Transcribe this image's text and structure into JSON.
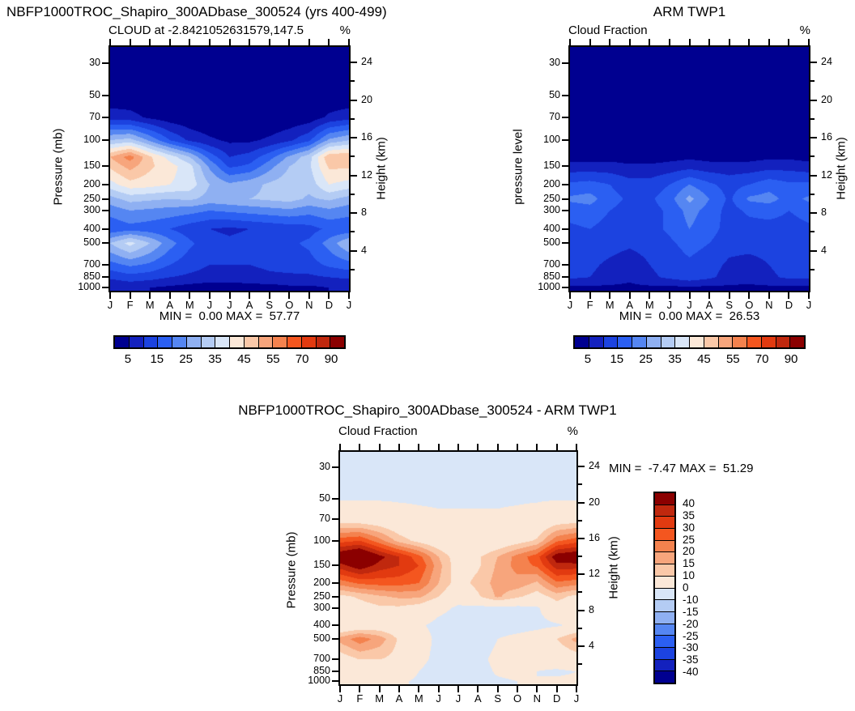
{
  "palette": [
    "#000090",
    "#1321BE",
    "#1C43E0",
    "#2B5FF2",
    "#5586F2",
    "#8FB0F2",
    "#B4CCF4",
    "#D9E6F8",
    "#FBE8D8",
    "#FAC8A8",
    "#F7A57C",
    "#F4824E",
    "#F4561F",
    "#E23A10",
    "#C0280E",
    "#8B0000"
  ],
  "months": [
    "J",
    "F",
    "M",
    "A",
    "M",
    "J",
    "J",
    "A",
    "S",
    "O",
    "N",
    "D",
    "J"
  ],
  "pressure_ticks": [
    30,
    50,
    70,
    100,
    150,
    200,
    250,
    300,
    400,
    500,
    700,
    850,
    1000
  ],
  "height_ticks_major": [
    24,
    20,
    16,
    12,
    8,
    4
  ],
  "height_ticks_minor": [
    22,
    18,
    14,
    10,
    6,
    2
  ],
  "chart_data": [
    {
      "type": "contour",
      "id": "model",
      "title": "NBFP1000TROC_Shapiro_300ADbase_300524 (yrs 400-499)",
      "subtitle": "CLOUD at -2.8421052631579,147.5",
      "unit": "%",
      "ylabel_left": "Pressure (mb)",
      "ylabel_right": "Height (km)",
      "stats": "MIN =  0.00 MAX =  57.77",
      "min": 0.0,
      "max": 57.77,
      "boundaries": [
        5,
        10,
        15,
        20,
        25,
        30,
        35,
        40,
        45,
        50,
        55,
        60,
        70,
        80,
        90
      ],
      "colorbar_labels": [
        "5",
        "15",
        "25",
        "35",
        "45",
        "55",
        "70",
        "90"
      ],
      "grid_levels_mb": [
        25,
        50,
        70,
        100,
        130,
        150,
        200,
        250,
        300,
        400,
        500,
        700,
        850,
        1000
      ],
      "values": [
        [
          0,
          0,
          0,
          0,
          0,
          0,
          0,
          0,
          0,
          0,
          0,
          0,
          0
        ],
        [
          1,
          1,
          0,
          0,
          0,
          0,
          0,
          0,
          0,
          0,
          0,
          1,
          1
        ],
        [
          8,
          7,
          4,
          2,
          1,
          0,
          0,
          0,
          0,
          1,
          2,
          6,
          8
        ],
        [
          30,
          32,
          24,
          15,
          9,
          6,
          4,
          4,
          6,
          9,
          14,
          26,
          30
        ],
        [
          50,
          57.5,
          46,
          38,
          30,
          18,
          10,
          12,
          18,
          26,
          33,
          49,
          50
        ],
        [
          46,
          52,
          46,
          42,
          37,
          24,
          14,
          16,
          23,
          30,
          34,
          46,
          46
        ],
        [
          38,
          43,
          42,
          40,
          38,
          30,
          26,
          28,
          31,
          33,
          32,
          40,
          38
        ],
        [
          28,
          32,
          31,
          30,
          31,
          28,
          29,
          30,
          31,
          32,
          29,
          31,
          28
        ],
        [
          22,
          25,
          24,
          23,
          22,
          20,
          21,
          22,
          23,
          24,
          22,
          24,
          22
        ],
        [
          16,
          18,
          17,
          15,
          12,
          10,
          9,
          10,
          11,
          12,
          13,
          16,
          16
        ],
        [
          30,
          37,
          30,
          22,
          16,
          12,
          11,
          12,
          13,
          14,
          16,
          22,
          30
        ],
        [
          18,
          21,
          19,
          15,
          12,
          10,
          10,
          10,
          11,
          12,
          13,
          16,
          18
        ],
        [
          11,
          13,
          12,
          10,
          9,
          8,
          8,
          8,
          9,
          9,
          9,
          10,
          11
        ],
        [
          5,
          6,
          5,
          4,
          3,
          2,
          2,
          3,
          3,
          4,
          4,
          5,
          5
        ]
      ]
    },
    {
      "type": "contour",
      "id": "obs",
      "title": "ARM TWP1",
      "subtitle": "Cloud Fraction",
      "unit": "%",
      "ylabel_left": "pressure level",
      "ylabel_right": "Height (km)",
      "stats": "MIN =  0.00 MAX =  26.53",
      "min": 0.0,
      "max": 26.53,
      "boundaries": [
        5,
        10,
        15,
        20,
        25,
        30,
        35,
        40,
        45,
        50,
        55,
        60,
        70,
        80,
        90
      ],
      "colorbar_labels": [
        "5",
        "15",
        "25",
        "35",
        "45",
        "55",
        "70",
        "90"
      ],
      "grid_levels_mb": [
        25,
        50,
        70,
        100,
        130,
        150,
        200,
        250,
        300,
        400,
        500,
        700,
        850,
        1000
      ],
      "values": [
        [
          0,
          0,
          0,
          0,
          0,
          0,
          0,
          0,
          0,
          0,
          0,
          0,
          0
        ],
        [
          0,
          0,
          0,
          0,
          0,
          0,
          0,
          0,
          0,
          0,
          0,
          0,
          0
        ],
        [
          0,
          0,
          0,
          0,
          0,
          0,
          0,
          0,
          0,
          0,
          0,
          0,
          0
        ],
        [
          1,
          1,
          1,
          1,
          1,
          1,
          1,
          1,
          1,
          1,
          1,
          1,
          1
        ],
        [
          3,
          3,
          3,
          2,
          2,
          3,
          4,
          3,
          3,
          3,
          4,
          4,
          3
        ],
        [
          7,
          7,
          7,
          6,
          6,
          7,
          8,
          7,
          7,
          7,
          8,
          8,
          7
        ],
        [
          16,
          17,
          15,
          12,
          12,
          15,
          20,
          16,
          13,
          15,
          18,
          16,
          16
        ],
        [
          21,
          22,
          17,
          14,
          14,
          18,
          26.5,
          20,
          14,
          21,
          22,
          18,
          21
        ],
        [
          17,
          18,
          15,
          13,
          13,
          16,
          22,
          18,
          13,
          16,
          17,
          15,
          17
        ],
        [
          14,
          15,
          13,
          12,
          13,
          16,
          20,
          17,
          13,
          13,
          13,
          13,
          14
        ],
        [
          13,
          13,
          12,
          11,
          12,
          14,
          17,
          15,
          12,
          12,
          12,
          12,
          13
        ],
        [
          12,
          11,
          9,
          7,
          10,
          12,
          14,
          12,
          9,
          8,
          10,
          12,
          12
        ],
        [
          11,
          10,
          8,
          6,
          9,
          11,
          13,
          11,
          8,
          7,
          9,
          11,
          11
        ],
        [
          4,
          4,
          4,
          4,
          4,
          4,
          4,
          4,
          4,
          4,
          4,
          4,
          4
        ]
      ]
    },
    {
      "type": "contour",
      "id": "difference",
      "title": "NBFP1000TROC_Shapiro_300ADbase_300524 - ARM TWP1",
      "subtitle": "Cloud Fraction",
      "unit": "%",
      "ylabel_left": "Pressure (mb)",
      "ylabel_right": "Height (km)",
      "stats": "MIN =  -7.47 MAX =  51.29",
      "min": -7.47,
      "max": 51.29,
      "boundaries": [
        -40,
        -35,
        -30,
        -25,
        -20,
        -15,
        -10,
        0,
        10,
        15,
        20,
        25,
        30,
        35,
        40
      ],
      "colorbar_labels": [
        "40",
        "35",
        "30",
        "25",
        "20",
        "15",
        "10",
        "0",
        "-10",
        "-15",
        "-20",
        "-25",
        "-30",
        "-35",
        "-40"
      ],
      "grid_levels_mb": [
        25,
        50,
        70,
        100,
        130,
        150,
        200,
        250,
        300,
        400,
        500,
        700,
        850,
        1000
      ],
      "values": [
        [
          -0.5,
          -0.5,
          -0.5,
          -0.5,
          -0.5,
          -0.5,
          -0.5,
          -0.5,
          -0.5,
          -0.5,
          -0.5,
          -0.5,
          -0.5
        ],
        [
          -0.5,
          -0.5,
          -0.5,
          -0.5,
          -0.5,
          -0.5,
          -0.5,
          -0.5,
          -0.5,
          -0.5,
          -0.5,
          -0.5,
          -0.5
        ],
        [
          6,
          5,
          4,
          2,
          1,
          0.5,
          0.5,
          0.5,
          0.5,
          1,
          2,
          5,
          6
        ],
        [
          28,
          30,
          22,
          13,
          8,
          4,
          2,
          2,
          4,
          7,
          11,
          24,
          28
        ],
        [
          46,
          51,
          42,
          35,
          27,
          15,
          6,
          9,
          15,
          22,
          28,
          44,
          46
        ],
        [
          38,
          44,
          38,
          35,
          30,
          17,
          6,
          9,
          16,
          22,
          26,
          38,
          38
        ],
        [
          22,
          26,
          27,
          27,
          25,
          15,
          7,
          12,
          17,
          18,
          14,
          24,
          22
        ],
        [
          8,
          11,
          14,
          16,
          16,
          10,
          3,
          9,
          16,
          11,
          7,
          12,
          8
        ],
        [
          5,
          7,
          9,
          9,
          7,
          2,
          -1,
          -2,
          -2,
          -2,
          -1,
          7,
          5
        ],
        [
          2,
          4,
          5,
          4,
          1,
          -2,
          -3,
          -3,
          -3,
          -3,
          -2,
          -1,
          2
        ],
        [
          17,
          23,
          18,
          9,
          4,
          -2,
          -7.5,
          -4,
          0,
          2,
          4,
          10,
          17
        ],
        [
          6,
          10,
          10,
          8,
          2,
          -2,
          -4,
          -2,
          2,
          4,
          3,
          4,
          6
        ],
        [
          0,
          3,
          4,
          4,
          0,
          -3,
          -5,
          -3,
          1,
          2,
          0,
          -1,
          0
        ],
        [
          1,
          2,
          2,
          1,
          -1,
          -2,
          -2,
          -2,
          -1,
          0,
          0,
          1,
          1
        ]
      ]
    }
  ]
}
